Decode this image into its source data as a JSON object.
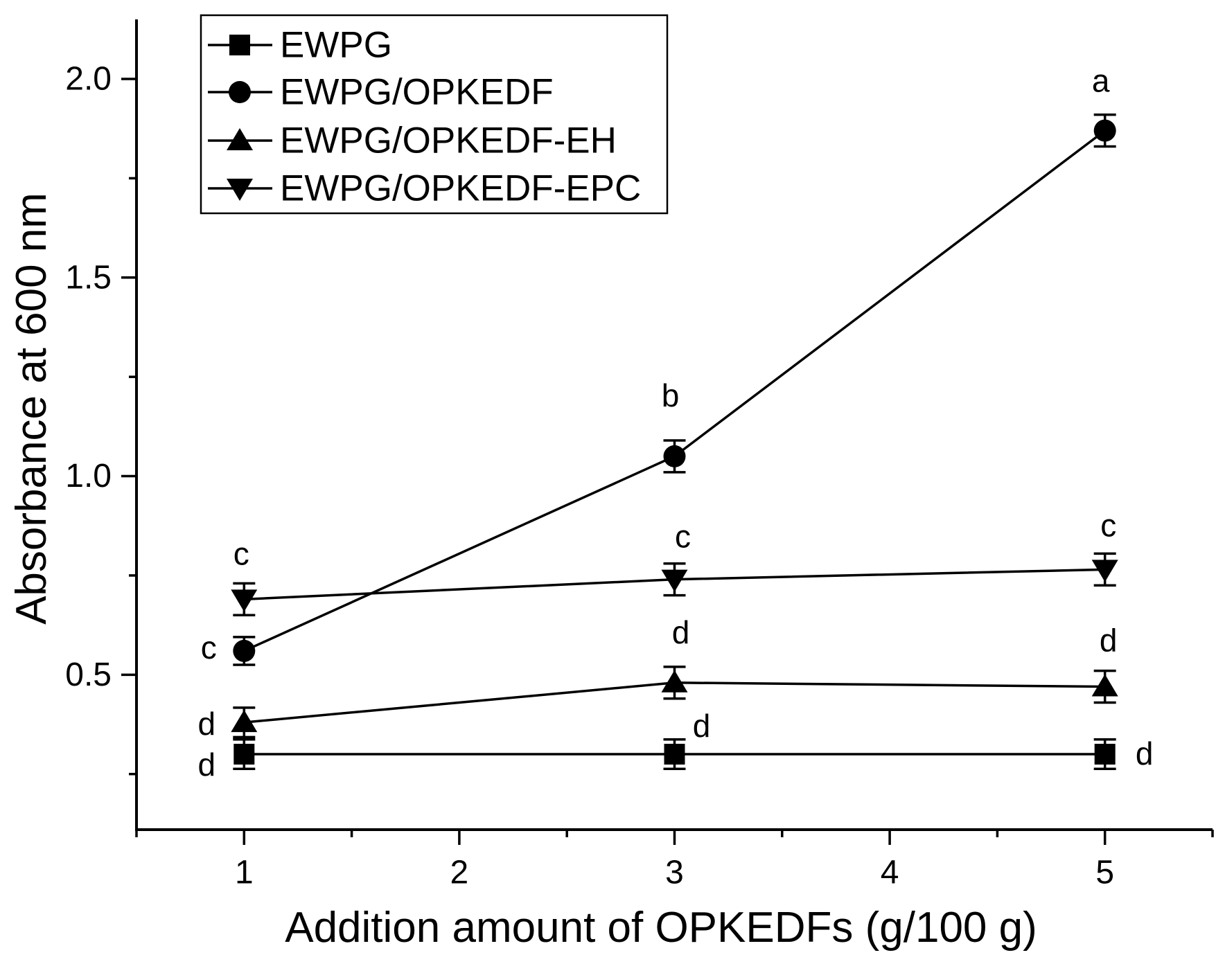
{
  "page": {
    "background": "#ffffff",
    "foreground": "#000000"
  },
  "chart_data": {
    "type": "line",
    "title": "",
    "xlabel": "Addition amount of OPKEDFs (g/100 g)",
    "ylabel": "Absorbance at 600 nm",
    "x": [
      1,
      3,
      5
    ],
    "xlim": [
      0.5,
      5.5
    ],
    "ylim": [
      0.11,
      2.15
    ],
    "grid": false,
    "legend_position": "top-left",
    "xticks": {
      "major": [
        {
          "v": 1,
          "label": "1"
        },
        {
          "v": 2,
          "label": "2"
        },
        {
          "v": 3,
          "label": "3"
        },
        {
          "v": 4,
          "label": "4"
        },
        {
          "v": 5,
          "label": "5"
        }
      ],
      "minor": [
        0.5,
        1.5,
        2.5,
        3.5,
        4.5,
        5.5
      ]
    },
    "yticks": {
      "major": [
        {
          "v": 2.0,
          "label": "2.0"
        },
        {
          "v": 1.5,
          "label": "1.5"
        },
        {
          "v": 1.0,
          "label": "1.0"
        },
        {
          "v": 0.5,
          "label": "0.5"
        }
      ],
      "minor": [
        1.75,
        1.25,
        0.75,
        0.25
      ]
    },
    "series": [
      {
        "name": "EWPG",
        "marker": "square",
        "values": [
          0.3,
          0.3,
          0.3
        ],
        "errors": [
          0.037,
          0.037,
          0.037
        ],
        "point_labels": [
          "d",
          "d",
          "d"
        ],
        "label_offsets": [
          [
            -54,
            15
          ],
          [
            39,
            -41
          ],
          [
            57,
            -1
          ]
        ]
      },
      {
        "name": "EWPG/OPKEDF",
        "marker": "circle",
        "values": [
          0.56,
          1.05,
          1.87
        ],
        "errors": [
          0.035,
          0.04,
          0.04
        ],
        "point_labels": [
          "c",
          "b",
          "a"
        ],
        "label_offsets": [
          [
            -51,
            -5
          ],
          [
            -6,
            -88
          ],
          [
            -6,
            -72
          ]
        ]
      },
      {
        "name": "EWPG/OPKEDF-EH",
        "marker": "triangle-up",
        "values": [
          0.38,
          0.48,
          0.47
        ],
        "errors": [
          0.037,
          0.04,
          0.04
        ],
        "point_labels": [
          "d",
          "d",
          "d"
        ],
        "label_offsets": [
          [
            -54,
            2
          ],
          [
            9,
            -73
          ],
          [
            5,
            -67
          ]
        ]
      },
      {
        "name": "EWPG/OPKEDF-EPC",
        "marker": "triangle-down",
        "values": [
          0.69,
          0.74,
          0.765
        ],
        "errors": [
          0.04,
          0.04,
          0.04
        ],
        "point_labels": [
          "c",
          "c",
          "c"
        ],
        "label_offsets": [
          [
            -4,
            -66
          ],
          [
            12,
            -62
          ],
          [
            5,
            -64
          ]
        ]
      }
    ],
    "colors": {
      "foreground": "#000000",
      "background": "#ffffff"
    }
  }
}
